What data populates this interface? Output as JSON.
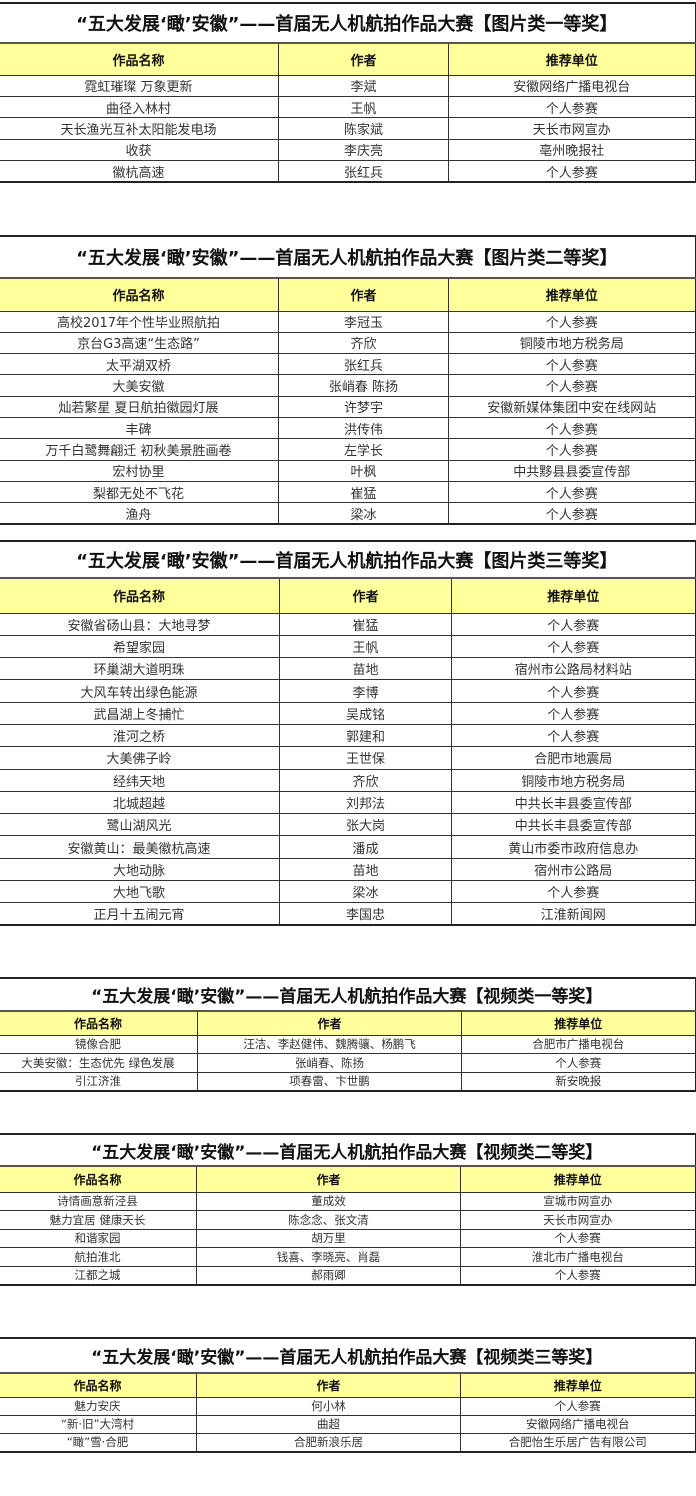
{
  "headers": [
    "作品名称",
    "作者",
    "推荐单位"
  ],
  "tables": [
    {
      "title": "“五大发展‘瞰’安徽”——首届无人机航拍作品大赛【图片类一等奖】",
      "rows": [
        [
          "霓虹璀璨 万象更新",
          "李斌",
          "安徽网络广播电视台"
        ],
        [
          "曲径入林村",
          "王帆",
          "个人参赛"
        ],
        [
          "天长渔光互补太阳能发电场",
          "陈家斌",
          "天长市网宣办"
        ],
        [
          "收获",
          "李庆亮",
          "亳州晚报社"
        ],
        [
          "徽杭高速",
          "张红兵",
          "个人参赛"
        ]
      ]
    },
    {
      "title": "“五大发展‘瞰’安徽”——首届无人机航拍作品大赛【图片类二等奖】",
      "rows": [
        [
          "高校2017年个性毕业照航拍",
          "李冠玉",
          "个人参赛"
        ],
        [
          "京台G3高速“生态路”",
          "齐欣",
          "铜陵市地方税务局"
        ],
        [
          "太平湖双桥",
          "张红兵",
          "个人参赛"
        ],
        [
          "大美安徽",
          "张峭春 陈扬",
          "个人参赛"
        ],
        [
          "灿若繁星 夏日航拍徽园灯展",
          "许梦宇",
          "安徽新媒体集团中安在线网站"
        ],
        [
          "丰碑",
          "洪传伟",
          "个人参赛"
        ],
        [
          "万千白鹭舞翩迁 初秋美景胜画卷",
          "左学长",
          "个人参赛"
        ],
        [
          "宏村协里",
          "叶枫",
          "中共黟县县委宣传部"
        ],
        [
          "梨都无处不飞花",
          "崔猛",
          "个人参赛"
        ],
        [
          "渔舟",
          "梁冰",
          "个人参赛"
        ]
      ]
    },
    {
      "title": "“五大发展‘瞰’安徽”——首届无人机航拍作品大赛【图片类三等奖】",
      "rows": [
        [
          "安徽省砀山县：大地寻梦",
          "崔猛",
          "个人参赛"
        ],
        [
          "希望家园",
          "王帆",
          "个人参赛"
        ],
        [
          "环巢湖大道明珠",
          "苗地",
          "宿州市公路局材料站"
        ],
        [
          "大风车转出绿色能源",
          "李博",
          "个人参赛"
        ],
        [
          "武昌湖上冬捕忙",
          "吴成铭",
          "个人参赛"
        ],
        [
          "淮河之桥",
          "郭建和",
          "个人参赛"
        ],
        [
          "大美佛子岭",
          "王世保",
          "合肥市地震局"
        ],
        [
          "经纬天地",
          "齐欣",
          "铜陵市地方税务局"
        ],
        [
          "北城超越",
          "刘邦法",
          "中共长丰县委宣传部"
        ],
        [
          "鹭山湖风光",
          "张大岗",
          "中共长丰县委宣传部"
        ],
        [
          "安徽黄山：最美徽杭高速",
          "潘成",
          "黄山市委市政府信息办"
        ],
        [
          "大地动脉",
          "苗地",
          "宿州市公路局"
        ],
        [
          "大地飞歌",
          "梁冰",
          "个人参赛"
        ],
        [
          "正月十五闹元宵",
          "李国忠",
          "江淮新闻网"
        ]
      ]
    },
    {
      "title": "“五大发展‘瞰’安徽”——首届无人机航拍作品大赛【视频类一等奖】",
      "rows": [
        [
          "镜像合肥",
          "汪洁、李赵健伟、魏腾骧、杨鹏飞",
          "合肥市广播电视台"
        ],
        [
          "大美安徽：生态优先 绿色发展",
          "张峭春、陈扬",
          "个人参赛"
        ],
        [
          "引江济淮",
          "项春雷、卞世鹏",
          "新安晚报"
        ]
      ]
    },
    {
      "title": "“五大发展‘瞰’安徽”——首届无人机航拍作品大赛【视频类二等奖】",
      "rows": [
        [
          "诗情画意新泾县",
          "董成效",
          "宣城市网宣办"
        ],
        [
          "魅力宜居 健康天长",
          "陈念念、张文清",
          "天长市网宣办"
        ],
        [
          "和谐家园",
          "胡万里",
          "个人参赛"
        ],
        [
          "航拍淮北",
          "钱喜、李晓亮、肖磊",
          "淮北市广播电视台"
        ],
        [
          "江都之城",
          "郝雨卿",
          "个人参赛"
        ]
      ]
    },
    {
      "title": "“五大发展‘瞰’安徽”——首届无人机航拍作品大赛【视频类三等奖】",
      "rows": [
        [
          "魅力安庆",
          "何小林",
          "个人参赛"
        ],
        [
          "“新·旧”大湾村",
          "曲超",
          "安徽网络广播电视台"
        ],
        [
          "“瞰”雪·合肥",
          "合肥新浪乐居",
          "合肥怡生乐居广告有限公司"
        ]
      ]
    }
  ]
}
